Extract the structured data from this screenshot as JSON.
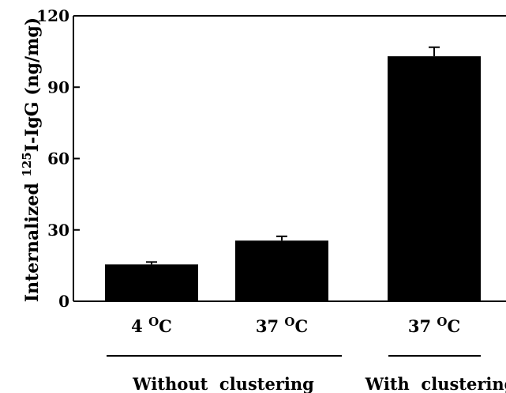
{
  "chart_data": {
    "type": "bar",
    "categories": [
      "4 °C",
      "37 °C",
      "37 °C"
    ],
    "category_parts": [
      {
        "value": "4",
        "unit_sup": "O",
        "unit": "C"
      },
      {
        "value": "37",
        "unit_sup": "O",
        "unit": "C"
      },
      {
        "value": "37",
        "unit_sup": "O",
        "unit": "C"
      }
    ],
    "values": [
      15.5,
      25.5,
      103
    ],
    "errors": [
      1.0,
      1.8,
      3.8
    ],
    "groups": [
      {
        "label": "Without  clustering",
        "categories": [
          0,
          1
        ]
      },
      {
        "label": "With  clustering",
        "categories": [
          2
        ]
      }
    ],
    "ylabel_parts": {
      "pre": "Internalized ",
      "sup": "125",
      "post": "I-IgG (ng/mg)"
    },
    "ylabel": "Internalized 125I-IgG (ng/mg)",
    "ylim": [
      0,
      120
    ],
    "yticks": [
      "0",
      "30",
      "60",
      "90",
      "120"
    ],
    "title": "",
    "xlabel": "",
    "grid": false,
    "bar_color": "#000000"
  }
}
